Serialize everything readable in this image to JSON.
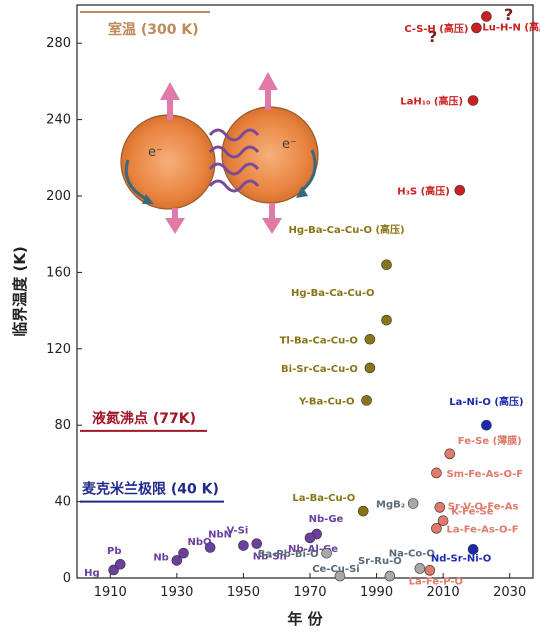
{
  "chart_data": {
    "type": "scatter",
    "xlabel": "年 份",
    "ylabel": "临界温度 (K)",
    "xlim": [
      1900,
      2037
    ],
    "ylim": [
      0,
      300
    ],
    "xticks": [
      1910,
      1930,
      1950,
      1970,
      1990,
      2010,
      2030
    ],
    "yticks": [
      0,
      40,
      80,
      120,
      160,
      200,
      240,
      280
    ],
    "reference_lines": [
      {
        "label": "室温 (300 K)",
        "value": 300,
        "color": "#c08a58"
      },
      {
        "label": "液氮沸点 (77K)",
        "value": 77,
        "color": "#a01828"
      },
      {
        "label": "麦克米兰极限 (40 K)",
        "value": 40,
        "color": "#1e2a8c"
      }
    ],
    "question_marks": [
      "?",
      "?"
    ],
    "series": [
      {
        "color": "#6a3fa0",
        "points": [
          {
            "label": "Hg",
            "x": 1911,
            "y": 4.2
          },
          {
            "label": "Pb",
            "x": 1913,
            "y": 7.2
          },
          {
            "label": "Nb",
            "x": 1930,
            "y": 9.2
          },
          {
            "label": "NbO",
            "x": 1932,
            "y": 13
          },
          {
            "label": "NbN",
            "x": 1940,
            "y": 16
          },
          {
            "label": "V-Si",
            "x": 1950,
            "y": 17
          },
          {
            "label": "Nb-Sn",
            "x": 1954,
            "y": 18
          },
          {
            "label": "Nb-Ge",
            "x": 1972,
            "y": 23
          },
          {
            "label": "Nb-Al-Ge",
            "x": 1970,
            "y": 21
          }
        ]
      },
      {
        "color": "#a8a8a8",
        "points": [
          {
            "label": "Ba-Pb-Bi-O",
            "x": 1975,
            "y": 13
          },
          {
            "label": "Ce-Cu-Si",
            "x": 1979,
            "y": 1
          },
          {
            "label": "Sr-Ru-O",
            "x": 1994,
            "y": 1
          },
          {
            "label": "Na-Co-O",
            "x": 2003,
            "y": 5
          },
          {
            "label": "MgB₂",
            "x": 2001,
            "y": 39
          }
        ]
      },
      {
        "color": "#8a7418",
        "points": [
          {
            "label": "La-Ba-Cu-O",
            "x": 1986,
            "y": 35
          },
          {
            "label": "Y-Ba-Cu-O",
            "x": 1987,
            "y": 93
          },
          {
            "label": "Bi-Sr-Ca-Cu-O",
            "x": 1988,
            "y": 110
          },
          {
            "label": "Tl-Ba-Ca-Cu-O",
            "x": 1988,
            "y": 125
          },
          {
            "label": "Hg-Ba-Ca-Cu-O",
            "x": 1993,
            "y": 135
          },
          {
            "label": "Hg-Ba-Ca-Cu-O (高压)",
            "x": 1993,
            "y": 164
          }
        ]
      },
      {
        "color": "#e07a6a",
        "points": [
          {
            "label": "La-Fe-P-O",
            "x": 2006,
            "y": 4
          },
          {
            "label": "La-Fe-As-O-F",
            "x": 2008,
            "y": 26
          },
          {
            "label": "K-Fe-Se",
            "x": 2010,
            "y": 30
          },
          {
            "label": "Sr-V-O-Fe-As",
            "x": 2009,
            "y": 37
          },
          {
            "label": "Sm-Fe-As-O-F",
            "x": 2008,
            "y": 55
          },
          {
            "label": "Fe-Se (薄膜)",
            "x": 2012,
            "y": 65
          }
        ]
      },
      {
        "color": "#1a2ab0",
        "points": [
          {
            "label": "Nd-Sr-Ni-O",
            "x": 2019,
            "y": 15
          },
          {
            "label": "La-Ni-O (高压)",
            "x": 2023,
            "y": 80
          }
        ]
      },
      {
        "color": "#cc1f1f",
        "points": [
          {
            "label": "H₃S (高压)",
            "x": 2015,
            "y": 203
          },
          {
            "label": "LaH₁₀ (高压)",
            "x": 2019,
            "y": 250
          },
          {
            "label": "C-S-H (高压)",
            "x": 2020,
            "y": 288
          },
          {
            "label": "Lu-H-N (高压)",
            "x": 2023,
            "y": 294
          }
        ]
      }
    ]
  }
}
